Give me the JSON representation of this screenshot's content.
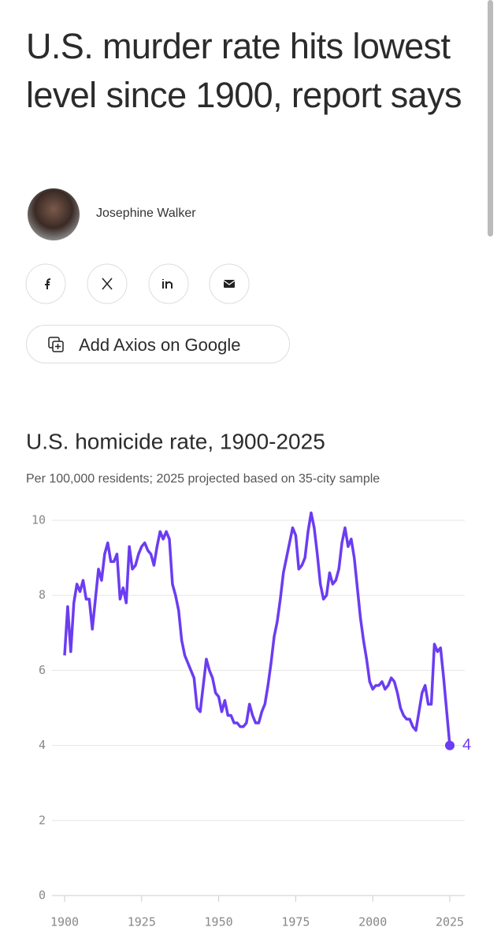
{
  "header": {
    "title": "U.S. murder rate hits lowest level since 1900, report says",
    "author": "Josephine Walker",
    "button": "Add Axios on Google"
  },
  "chart_data": {
    "type": "line",
    "title": "U.S. homicide rate, 1900-2025",
    "subtitle": "Per 100,000 residents; 2025 projected based on 35-city sample",
    "x": [
      1900,
      1901,
      1902,
      1903,
      1904,
      1905,
      1906,
      1907,
      1908,
      1909,
      1910,
      1911,
      1912,
      1913,
      1914,
      1915,
      1916,
      1917,
      1918,
      1919,
      1920,
      1921,
      1922,
      1923,
      1924,
      1925,
      1926,
      1927,
      1928,
      1929,
      1930,
      1931,
      1932,
      1933,
      1934,
      1935,
      1936,
      1937,
      1938,
      1939,
      1940,
      1941,
      1942,
      1943,
      1944,
      1945,
      1946,
      1947,
      1948,
      1949,
      1950,
      1951,
      1952,
      1953,
      1954,
      1955,
      1956,
      1957,
      1958,
      1959,
      1960,
      1961,
      1962,
      1963,
      1964,
      1965,
      1966,
      1967,
      1968,
      1969,
      1970,
      1971,
      1972,
      1973,
      1974,
      1975,
      1976,
      1977,
      1978,
      1979,
      1980,
      1981,
      1982,
      1983,
      1984,
      1985,
      1986,
      1987,
      1988,
      1989,
      1990,
      1991,
      1992,
      1993,
      1994,
      1995,
      1996,
      1997,
      1998,
      1999,
      2000,
      2001,
      2002,
      2003,
      2004,
      2005,
      2006,
      2007,
      2008,
      2009,
      2010,
      2011,
      2012,
      2013,
      2014,
      2015,
      2016,
      2017,
      2018,
      2019,
      2020,
      2021,
      2022,
      2023,
      2024,
      2025
    ],
    "values": [
      6.4,
      7.7,
      6.5,
      7.8,
      8.3,
      8.1,
      8.4,
      7.9,
      7.9,
      7.1,
      7.9,
      8.7,
      8.4,
      9.1,
      9.4,
      8.9,
      8.9,
      9.1,
      7.9,
      8.2,
      7.8,
      9.3,
      8.7,
      8.8,
      9.1,
      9.3,
      9.4,
      9.2,
      9.1,
      8.8,
      9.3,
      9.7,
      9.5,
      9.7,
      9.5,
      8.3,
      8.0,
      7.6,
      6.8,
      6.4,
      6.2,
      6.0,
      5.8,
      5.0,
      4.9,
      5.6,
      6.3,
      6.0,
      5.8,
      5.4,
      5.3,
      4.9,
      5.2,
      4.8,
      4.8,
      4.6,
      4.6,
      4.5,
      4.5,
      4.6,
      5.1,
      4.8,
      4.6,
      4.6,
      4.9,
      5.1,
      5.6,
      6.2,
      6.9,
      7.3,
      7.9,
      8.6,
      9.0,
      9.4,
      9.8,
      9.6,
      8.7,
      8.8,
      9.0,
      9.7,
      10.2,
      9.8,
      9.1,
      8.3,
      7.9,
      8.0,
      8.6,
      8.3,
      8.4,
      8.7,
      9.4,
      9.8,
      9.3,
      9.5,
      9.0,
      8.2,
      7.4,
      6.8,
      6.3,
      5.7,
      5.5,
      5.6,
      5.6,
      5.7,
      5.5,
      5.6,
      5.8,
      5.7,
      5.4,
      5.0,
      4.8,
      4.7,
      4.7,
      4.5,
      4.4,
      4.9,
      5.4,
      5.6,
      5.1,
      5.1,
      6.7,
      6.5,
      6.6,
      5.8,
      4.9,
      4
    ],
    "color": "#6b3cf2",
    "xlim": [
      1900,
      2025
    ],
    "xticks": [
      1900,
      1925,
      1950,
      1975,
      2000,
      2025
    ],
    "ylim": [
      0,
      10.5
    ],
    "yticks": [
      0,
      2,
      4,
      6,
      8,
      10
    ],
    "grid": true
  }
}
